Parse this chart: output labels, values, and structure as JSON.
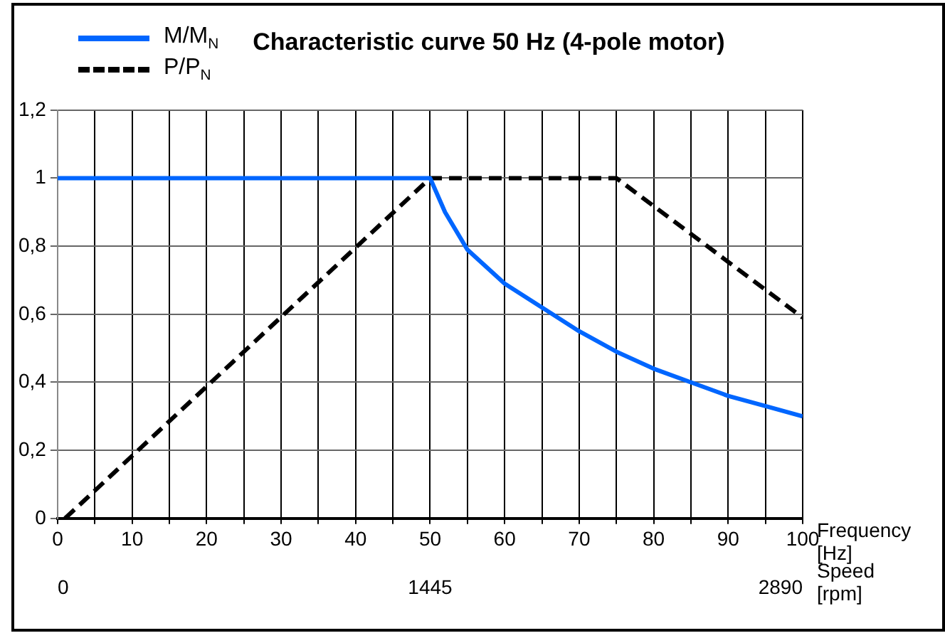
{
  "chart_data": {
    "type": "line",
    "title": "Characteristic curve 50 Hz (4-pole motor)",
    "xlabel": "Frequency [Hz]",
    "x2label": "Speed [rpm]",
    "series": [
      {
        "name": "M/M$_{N}$",
        "color": "#0066ff",
        "line_style": "solid",
        "x": [
          0,
          50,
          52,
          55,
          60,
          65,
          70,
          75,
          80,
          85,
          90,
          95,
          100
        ],
        "values": [
          1,
          1,
          0.9,
          0.79,
          0.69,
          0.62,
          0.55,
          0.49,
          0.44,
          0.4,
          0.36,
          0.33,
          0.3
        ]
      },
      {
        "name": "P/P$_{N}$",
        "color": "#000000",
        "line_style": "dashed",
        "x": [
          1,
          50,
          75,
          100
        ],
        "values": [
          0,
          1,
          1,
          0.59
        ]
      }
    ],
    "xlim": [
      0,
      100
    ],
    "xticks": [
      0,
      {
        "value": 5,
        "label": null
      },
      10,
      {
        "value": 15,
        "label": null
      },
      20,
      {
        "value": 25,
        "label": null
      },
      30,
      {
        "value": 35,
        "label": null
      },
      40,
      {
        "value": 45,
        "label": null
      },
      50,
      {
        "value": 55,
        "label": null
      },
      60,
      {
        "value": 65,
        "label": null
      },
      70,
      {
        "value": 75,
        "label": null
      },
      80,
      {
        "value": 85,
        "label": null
      },
      90,
      {
        "value": 95,
        "label": null
      },
      100
    ],
    "x2lim": [
      0,
      2890
    ],
    "x2ticks": [
      0,
      1445,
      2890
    ],
    "ylim": [
      0,
      1.2
    ],
    "yticks": [
      0,
      {
        "value": 0.2,
        "label": "0,2"
      },
      {
        "value": 0.4,
        "label": "0,4"
      },
      {
        "value": 0.6,
        "label": "0,6"
      },
      {
        "value": 0.8,
        "label": "0,8"
      },
      1,
      {
        "value": 1.2,
        "label": "1,2"
      }
    ],
    "grid": true,
    "legend": "top left",
    "marker": "none"
  }
}
